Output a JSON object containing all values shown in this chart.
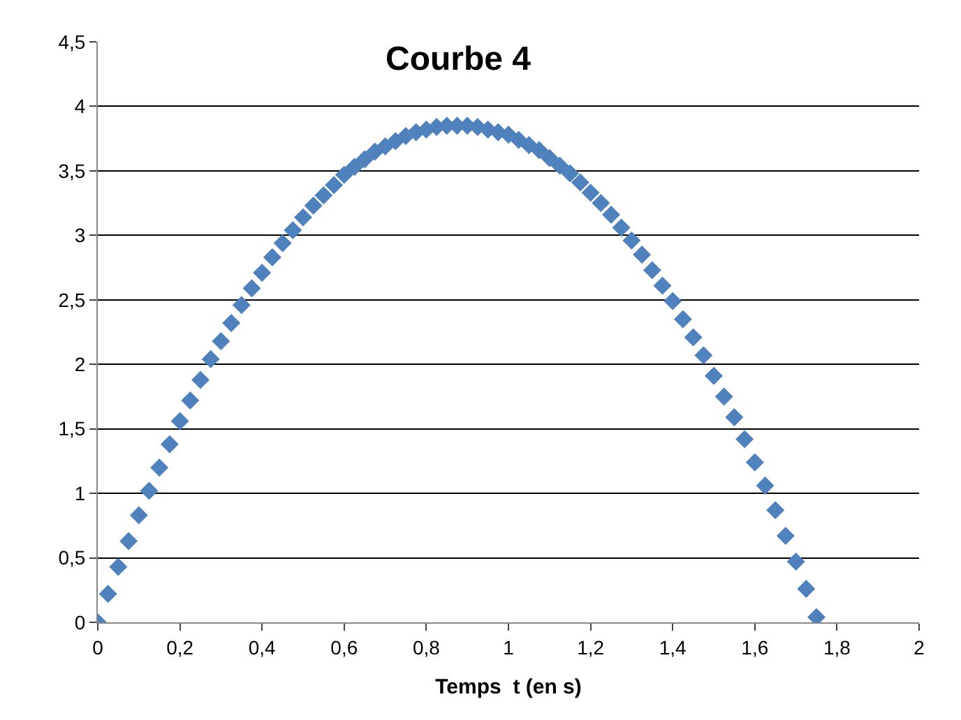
{
  "chart_data": {
    "type": "scatter",
    "title": "Courbe 4",
    "xlabel": "Temps  t (en s)",
    "x": [
      0,
      0.025,
      0.05,
      0.075,
      0.1,
      0.125,
      0.15,
      0.175,
      0.2,
      0.225,
      0.25,
      0.275,
      0.3,
      0.325,
      0.35,
      0.375,
      0.4,
      0.425,
      0.45,
      0.475,
      0.5,
      0.525,
      0.55,
      0.575,
      0.6,
      0.625,
      0.65,
      0.675,
      0.7,
      0.725,
      0.75,
      0.775,
      0.8,
      0.825,
      0.85,
      0.875,
      0.9,
      0.925,
      0.95,
      0.975,
      1.0,
      1.025,
      1.05,
      1.075,
      1.1,
      1.125,
      1.15,
      1.175,
      1.2,
      1.225,
      1.25,
      1.275,
      1.3,
      1.325,
      1.35,
      1.375,
      1.4,
      1.425,
      1.45,
      1.475,
      1.5,
      1.525,
      1.55,
      1.575,
      1.6,
      1.625,
      1.65,
      1.675,
      1.7,
      1.725,
      1.75
    ],
    "series": [
      {
        "color": "#4f81bd",
        "values": [
          0,
          0.22,
          0.43,
          0.63,
          0.83,
          1.02,
          1.2,
          1.38,
          1.56,
          1.72,
          1.88,
          2.04,
          2.18,
          2.32,
          2.46,
          2.59,
          2.71,
          2.83,
          2.94,
          3.04,
          3.14,
          3.23,
          3.31,
          3.39,
          3.47,
          3.53,
          3.59,
          3.65,
          3.69,
          3.73,
          3.77,
          3.8,
          3.82,
          3.84,
          3.85,
          3.85,
          3.85,
          3.84,
          3.82,
          3.8,
          3.78,
          3.74,
          3.7,
          3.66,
          3.6,
          3.54,
          3.48,
          3.41,
          3.33,
          3.25,
          3.16,
          3.06,
          2.96,
          2.85,
          2.73,
          2.61,
          2.49,
          2.35,
          2.21,
          2.07,
          1.91,
          1.75,
          1.59,
          1.42,
          1.24,
          1.06,
          0.87,
          0.67,
          0.47,
          0.26,
          0.04
        ]
      }
    ],
    "marker": "diamond",
    "grid": "y",
    "legend": false,
    "xlim": [
      0,
      2
    ],
    "ylim": [
      0,
      4.5
    ],
    "xticks": [
      0,
      {
        "value": 0.2,
        "label": "0,2"
      },
      {
        "value": 0.4,
        "label": "0,4"
      },
      {
        "value": 0.6,
        "label": "0,6"
      },
      {
        "value": 0.8,
        "label": "0,8"
      },
      1,
      {
        "value": 1.2,
        "label": "1,2"
      },
      {
        "value": 1.4,
        "label": "1,4"
      },
      {
        "value": 1.6,
        "label": "1,6"
      },
      {
        "value": 1.8,
        "label": "1,8"
      },
      2
    ],
    "yticks": [
      0,
      {
        "value": 0.5,
        "label": "0,5"
      },
      1,
      {
        "value": 1.5,
        "label": "1,5"
      },
      2,
      {
        "value": 2.5,
        "label": "2,5"
      },
      3,
      {
        "value": 3.5,
        "label": "3,5"
      },
      4,
      {
        "value": 4.5,
        "label": "4,5"
      }
    ]
  }
}
